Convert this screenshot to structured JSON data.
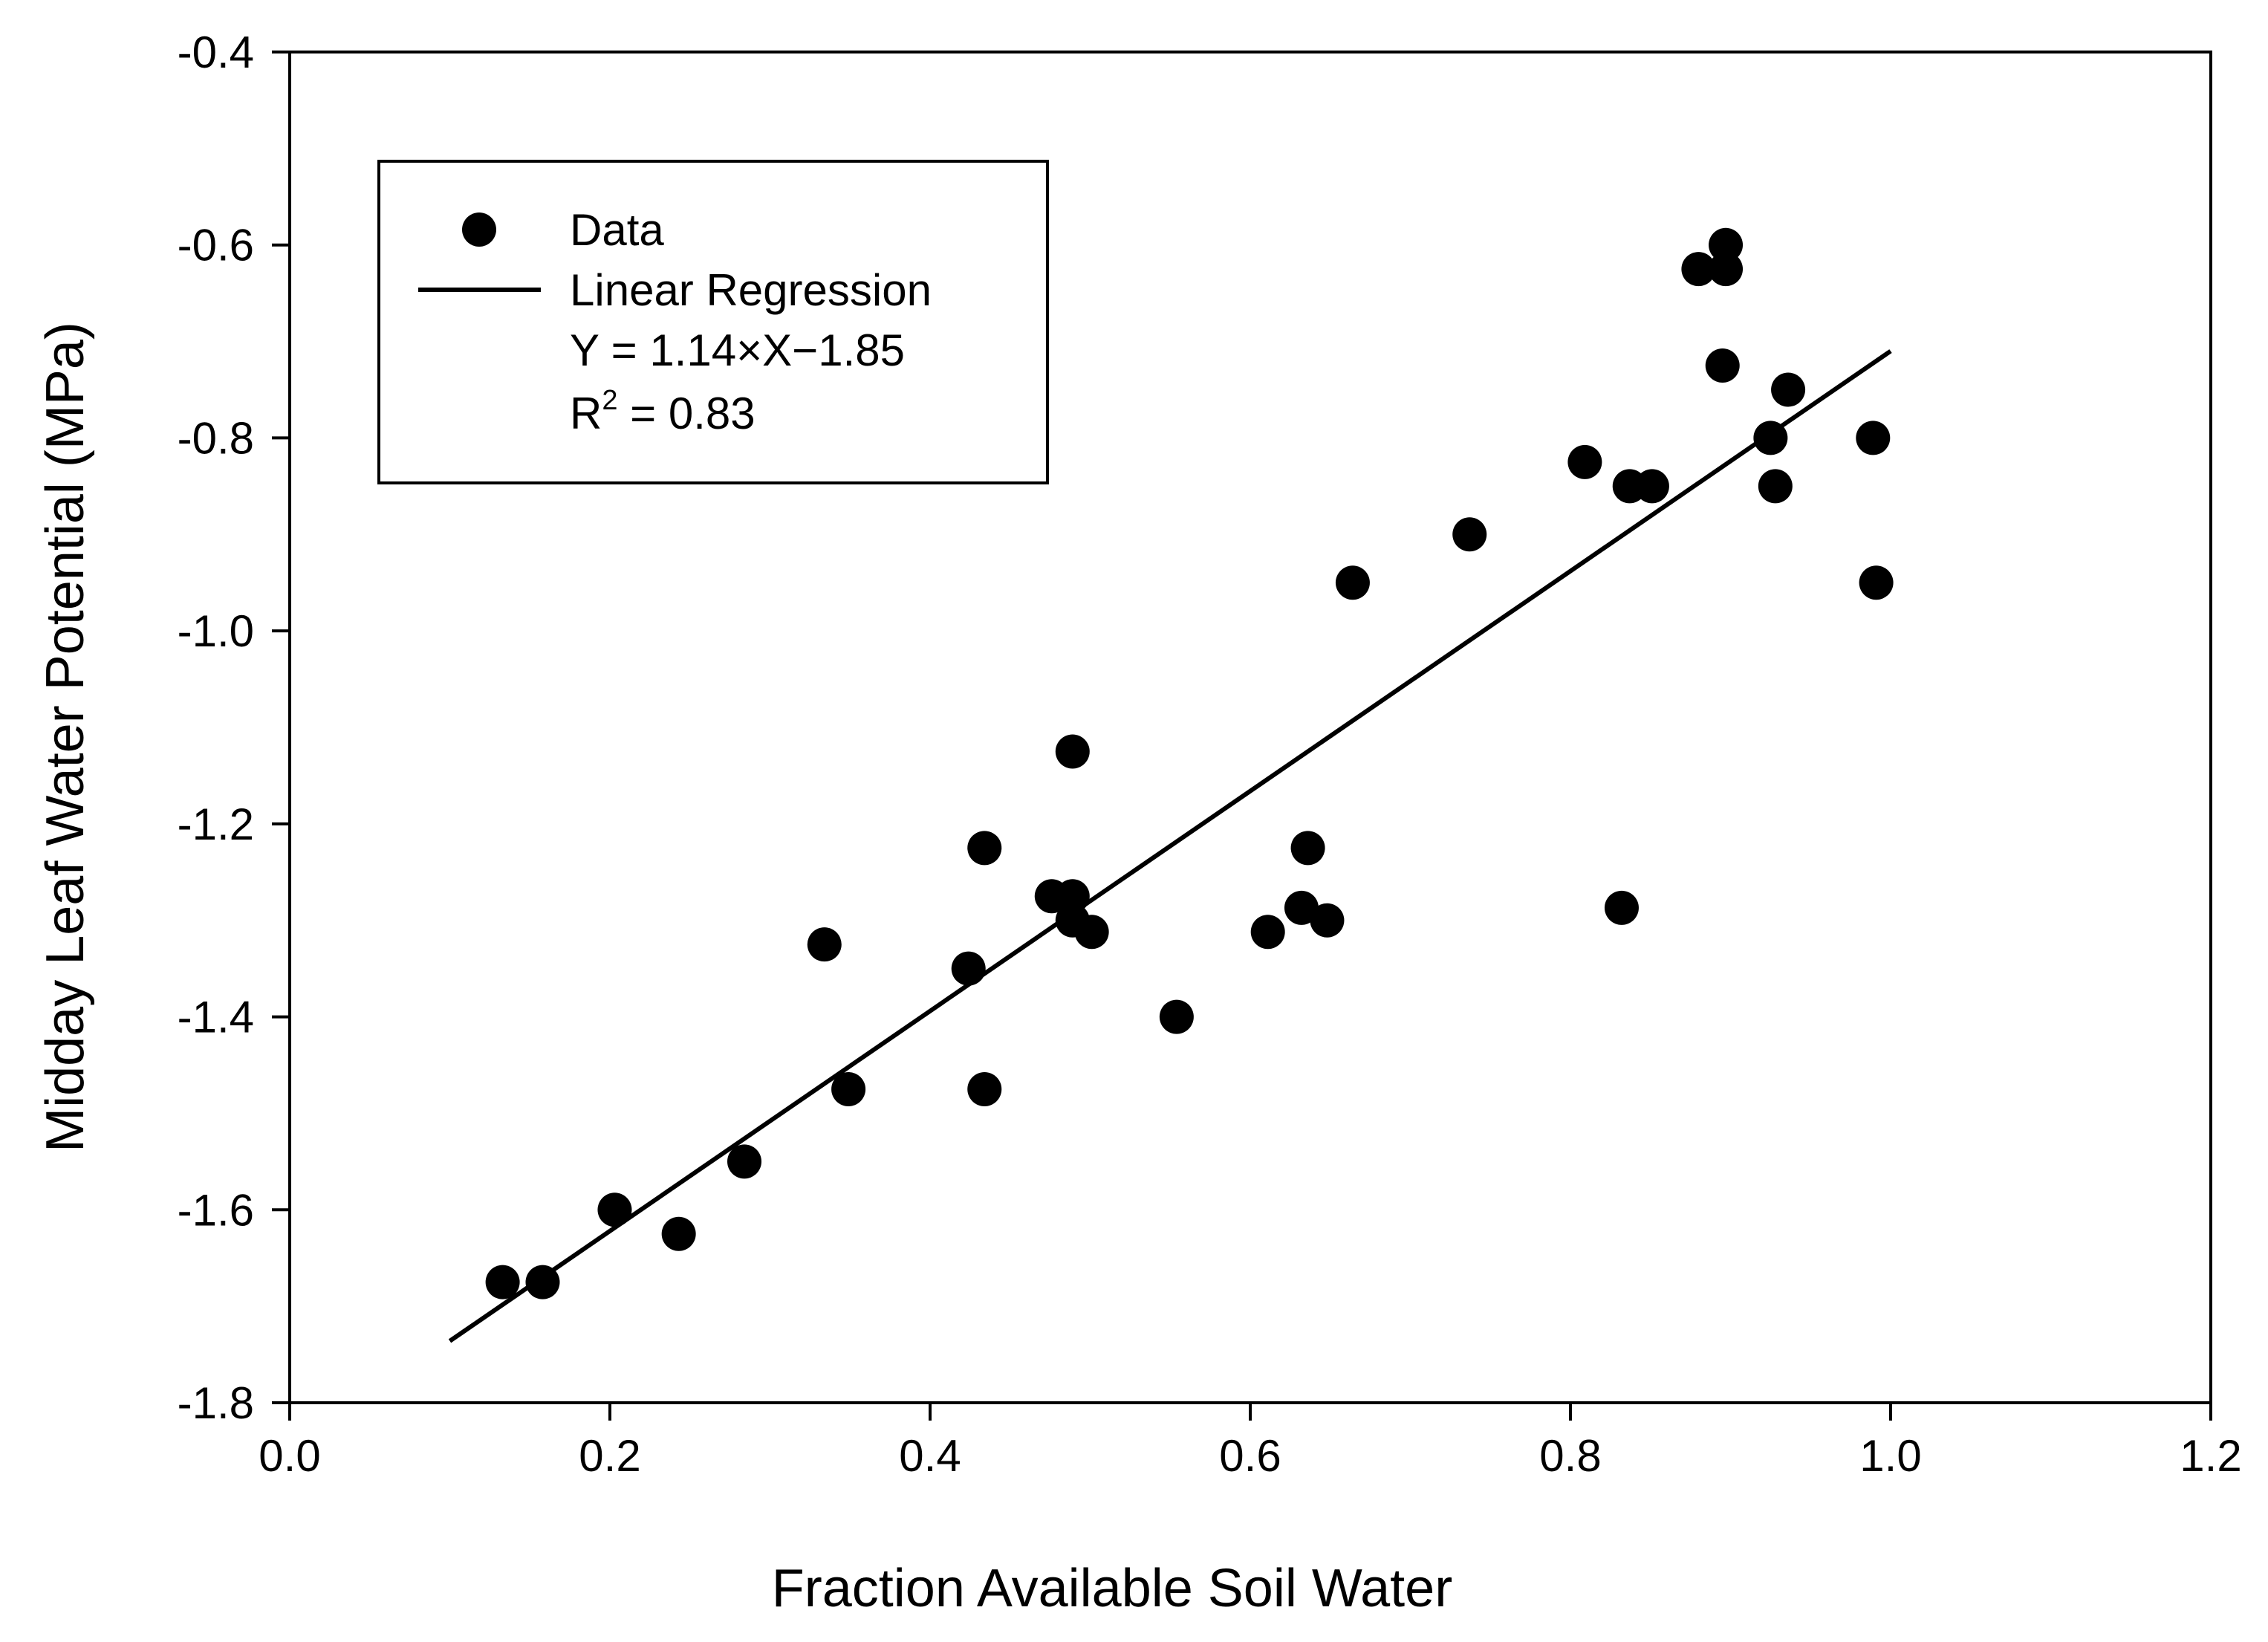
{
  "chart_data": {
    "type": "scatter",
    "title": "",
    "xlabel": "Fraction Available Soil Water",
    "ylabel": "Midday Leaf Water Potential (MPa)",
    "xlim": [
      0.0,
      1.2
    ],
    "ylim": [
      -1.8,
      -0.4
    ],
    "xticks": [
      0.0,
      0.2,
      0.4,
      0.6,
      0.8,
      1.0,
      1.2
    ],
    "xtick_labels": [
      "0.0",
      "0.2",
      "0.4",
      "0.6",
      "0.8",
      "1.0",
      "1.2"
    ],
    "yticks": [
      -1.8,
      -1.6,
      -1.4,
      -1.2,
      -1.0,
      -0.8,
      -0.6,
      -0.4
    ],
    "ytick_labels": [
      "-1.8",
      "-1.6",
      "-1.4",
      "-1.2",
      "-1.0",
      "-0.8",
      "-0.6",
      "-0.4"
    ],
    "grid": false,
    "legend": {
      "position": "top-left",
      "data_label": "Data",
      "line_label": "Linear Regression",
      "equation": "Y = 1.14×X−1.85",
      "r2_prefix": "R",
      "r2_superscript": "2",
      "r2_value": " = 0.83"
    },
    "series": [
      {
        "name": "Data",
        "kind": "scatter",
        "points": [
          [
            0.133,
            -1.675
          ],
          [
            0.158,
            -1.675
          ],
          [
            0.203,
            -1.6
          ],
          [
            0.243,
            -1.625
          ],
          [
            0.284,
            -1.55
          ],
          [
            0.334,
            -1.325
          ],
          [
            0.349,
            -1.475
          ],
          [
            0.424,
            -1.35
          ],
          [
            0.434,
            -1.225
          ],
          [
            0.434,
            -1.475
          ],
          [
            0.476,
            -1.275
          ],
          [
            0.489,
            -1.275
          ],
          [
            0.489,
            -1.3
          ],
          [
            0.489,
            -1.125
          ],
          [
            0.501,
            -1.312
          ],
          [
            0.554,
            -1.4
          ],
          [
            0.611,
            -1.312
          ],
          [
            0.632,
            -1.287
          ],
          [
            0.636,
            -1.225
          ],
          [
            0.648,
            -1.3
          ],
          [
            0.664,
            -0.95
          ],
          [
            0.737,
            -0.9
          ],
          [
            0.809,
            -0.825
          ],
          [
            0.832,
            -1.287
          ],
          [
            0.837,
            -0.85
          ],
          [
            0.851,
            -0.85
          ],
          [
            0.88,
            -0.625
          ],
          [
            0.895,
            -0.725
          ],
          [
            0.897,
            -0.6
          ],
          [
            0.897,
            -0.625
          ],
          [
            0.925,
            -0.8
          ],
          [
            0.928,
            -0.85
          ],
          [
            0.936,
            -0.75
          ],
          [
            0.989,
            -0.8
          ],
          [
            0.991,
            -0.95
          ]
        ]
      },
      {
        "name": "Linear Regression",
        "kind": "line",
        "slope": 1.14,
        "intercept": -1.85,
        "x_range": [
          0.1,
          1.0
        ]
      }
    ]
  }
}
